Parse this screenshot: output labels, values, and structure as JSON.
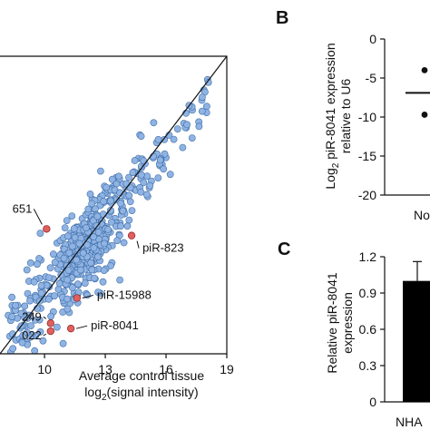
{
  "chart_data": [
    {
      "type": "scatter",
      "xlabel": "Average control tissue",
      "xlabel_line2_prefix": "log",
      "xlabel_line2_sub": "2",
      "xlabel_line2_suffix": "(signal intensity)",
      "xticks": [
        "10",
        "13",
        "16",
        "19"
      ],
      "xlim": [
        7.8,
        19
      ],
      "ylim": [
        7.8,
        19
      ],
      "diagonal": true,
      "colors": {
        "point": "#8fb3e3",
        "highlight": "#e06060",
        "edge": "#3f6ea8"
      },
      "highlights": [
        {
          "label": "piR-823",
          "x": 14.3,
          "y": 12.25
        },
        {
          "label": "piR-15988",
          "x": 11.6,
          "y": 9.9
        },
        {
          "label": "piR-8041",
          "x": 11.3,
          "y": 8.75
        },
        {
          "label": "651",
          "x": 10.1,
          "y": 12.5
        },
        {
          "label": "249",
          "x": 10.3,
          "y": 8.95
        },
        {
          "label": "022",
          "x": 10.3,
          "y": 8.65
        }
      ],
      "n_background_points": 540
    },
    {
      "panel_letter": "B",
      "type": "scatter",
      "ylabel_line1_prefix": "Log",
      "ylabel_line1_sub": "2",
      "ylabel_line1_suffix": " piR-8041 expression",
      "ylabel_line2": "relative to U6",
      "yticks": [
        "0",
        "-5",
        "-10",
        "-15",
        "-20"
      ],
      "ylim": [
        -20,
        0
      ],
      "xticks": [
        "No"
      ],
      "points": [
        {
          "x": "No",
          "y": -4.0
        },
        {
          "x": "No",
          "y": -9.7
        }
      ],
      "mean": -6.9
    },
    {
      "panel_letter": "C",
      "type": "bar",
      "ylabel_line1": "Relative piR-8041",
      "ylabel_line2": "expression",
      "yticks": [
        "1.2",
        "0.9",
        "0.6",
        "0.3",
        "0"
      ],
      "ylim": [
        0,
        1.2
      ],
      "categories": [
        "NHA"
      ],
      "values": [
        1.0
      ],
      "error_upper": 1.16
    }
  ]
}
